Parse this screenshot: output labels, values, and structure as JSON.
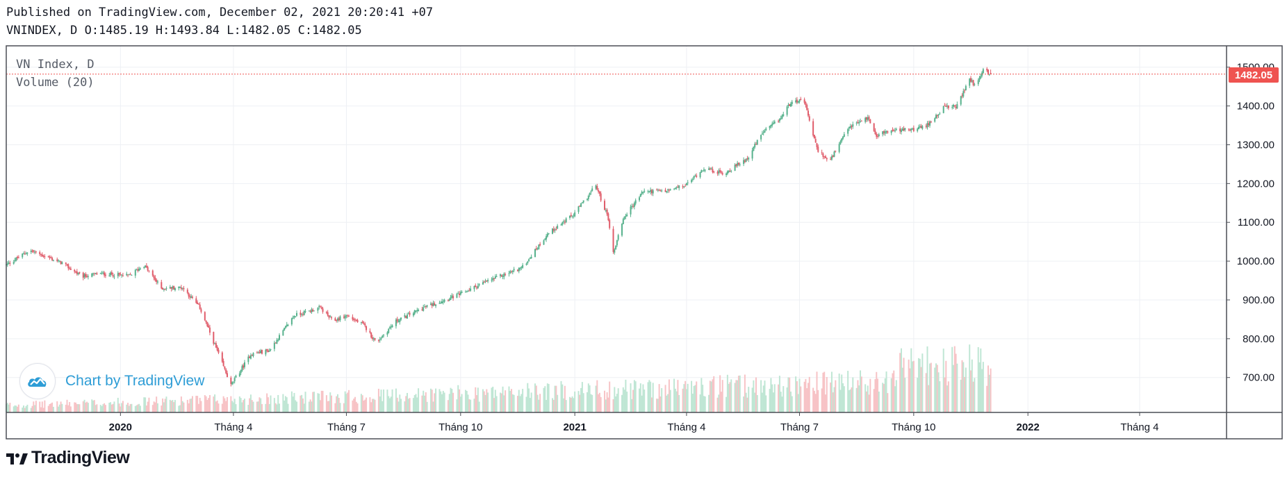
{
  "header": {
    "published": "Published on TradingView.com, December 02, 2021 20:20:41 +07",
    "ohlc": "VNINDEX, D O:1485.19 H:1493.84 L:1482.05 C:1482.05"
  },
  "legend": {
    "symbol": "VN Index, D",
    "volume": "Volume (20)"
  },
  "watermark": {
    "text": "Chart by TradingView",
    "icon": "tradingview-cloud-icon"
  },
  "footer": {
    "brand": "TradingView",
    "logo": "tradingview-logo-icon"
  },
  "colors": {
    "up": "#26a69a",
    "down": "#ef5350",
    "up_body": "#56b18c",
    "down_body": "#e05c6a",
    "up_volume": "#bfe6d4",
    "down_volume": "#f7c3c6",
    "grid": "#eef0f4",
    "border": "#4a4d55"
  },
  "chart_data": {
    "type": "candlestick",
    "title": "VN Index, D",
    "symbol": "VNINDEX",
    "interval": "D",
    "last_price": 1482.05,
    "last_price_label": "1482.05",
    "ohlc_last": {
      "open": 1485.19,
      "high": 1493.84,
      "low": 1482.05,
      "close": 1482.05
    },
    "y_axis": {
      "ticks": [
        700,
        800,
        900,
        1000,
        1100,
        1200,
        1300,
        1400,
        1500
      ],
      "tick_labels": [
        "700.00",
        "800.00",
        "900.00",
        "1000.00",
        "1100.00",
        "1200.00",
        "1300.00",
        "1400.00",
        "1500.00"
      ],
      "ylim": [
        610,
        1555
      ]
    },
    "x_axis": {
      "range": [
        "2019-10-01",
        "2022-06-10"
      ],
      "ticks": [
        {
          "date": "2020-01-01",
          "label": "2020",
          "bold": true
        },
        {
          "date": "2020-04-01",
          "label": "Tháng 4",
          "bold": false
        },
        {
          "date": "2020-07-01",
          "label": "Tháng 7",
          "bold": false
        },
        {
          "date": "2020-10-01",
          "label": "Tháng 10",
          "bold": false
        },
        {
          "date": "2021-01-01",
          "label": "2021",
          "bold": true
        },
        {
          "date": "2021-04-01",
          "label": "Tháng 4",
          "bold": false
        },
        {
          "date": "2021-07-01",
          "label": "Tháng 7",
          "bold": false
        },
        {
          "date": "2021-10-01",
          "label": "Tháng 10",
          "bold": false
        },
        {
          "date": "2022-01-01",
          "label": "2022",
          "bold": true
        },
        {
          "date": "2022-04-01",
          "label": "Tháng 4",
          "bold": false
        }
      ]
    },
    "price_path": [
      [
        "2019-10-01",
        990
      ],
      [
        "2019-10-20",
        1028
      ],
      [
        "2019-11-15",
        995
      ],
      [
        "2019-12-01",
        960
      ],
      [
        "2019-12-15",
        968
      ],
      [
        "2020-01-08",
        962
      ],
      [
        "2020-01-20",
        990
      ],
      [
        "2020-02-03",
        930
      ],
      [
        "2020-02-20",
        932
      ],
      [
        "2020-03-05",
        880
      ],
      [
        "2020-03-20",
        760
      ],
      [
        "2020-03-30",
        680
      ],
      [
        "2020-04-15",
        760
      ],
      [
        "2020-04-30",
        770
      ],
      [
        "2020-05-20",
        860
      ],
      [
        "2020-06-10",
        880
      ],
      [
        "2020-06-20",
        845
      ],
      [
        "2020-07-01",
        860
      ],
      [
        "2020-07-15",
        835
      ],
      [
        "2020-07-25",
        790
      ],
      [
        "2020-08-10",
        845
      ],
      [
        "2020-09-01",
        880
      ],
      [
        "2020-10-01",
        915
      ],
      [
        "2020-10-20",
        945
      ],
      [
        "2020-11-05",
        965
      ],
      [
        "2020-11-20",
        985
      ],
      [
        "2020-12-10",
        1070
      ],
      [
        "2020-12-31",
        1120
      ],
      [
        "2021-01-18",
        1195
      ],
      [
        "2021-01-28",
        1110
      ],
      [
        "2021-02-01",
        1020
      ],
      [
        "2021-02-09",
        1110
      ],
      [
        "2021-02-25",
        1180
      ],
      [
        "2021-03-15",
        1180
      ],
      [
        "2021-03-31",
        1195
      ],
      [
        "2021-04-15",
        1240
      ],
      [
        "2021-05-01",
        1225
      ],
      [
        "2021-05-20",
        1265
      ],
      [
        "2021-06-01",
        1330
      ],
      [
        "2021-06-15",
        1365
      ],
      [
        "2021-06-25",
        1415
      ],
      [
        "2021-07-05",
        1410
      ],
      [
        "2021-07-15",
        1290
      ],
      [
        "2021-07-25",
        1255
      ],
      [
        "2021-08-10",
        1345
      ],
      [
        "2021-08-25",
        1370
      ],
      [
        "2021-09-01",
        1325
      ],
      [
        "2021-09-10",
        1335
      ],
      [
        "2021-10-01",
        1340
      ],
      [
        "2021-10-10",
        1345
      ],
      [
        "2021-10-25",
        1395
      ],
      [
        "2021-11-05",
        1400
      ],
      [
        "2021-11-15",
        1470
      ],
      [
        "2021-11-20",
        1450
      ],
      [
        "2021-11-26",
        1495
      ],
      [
        "2021-12-02",
        1482
      ]
    ],
    "volume_series": {
      "name": "Volume (20)",
      "ylim": [
        0,
        800000000
      ]
    }
  }
}
